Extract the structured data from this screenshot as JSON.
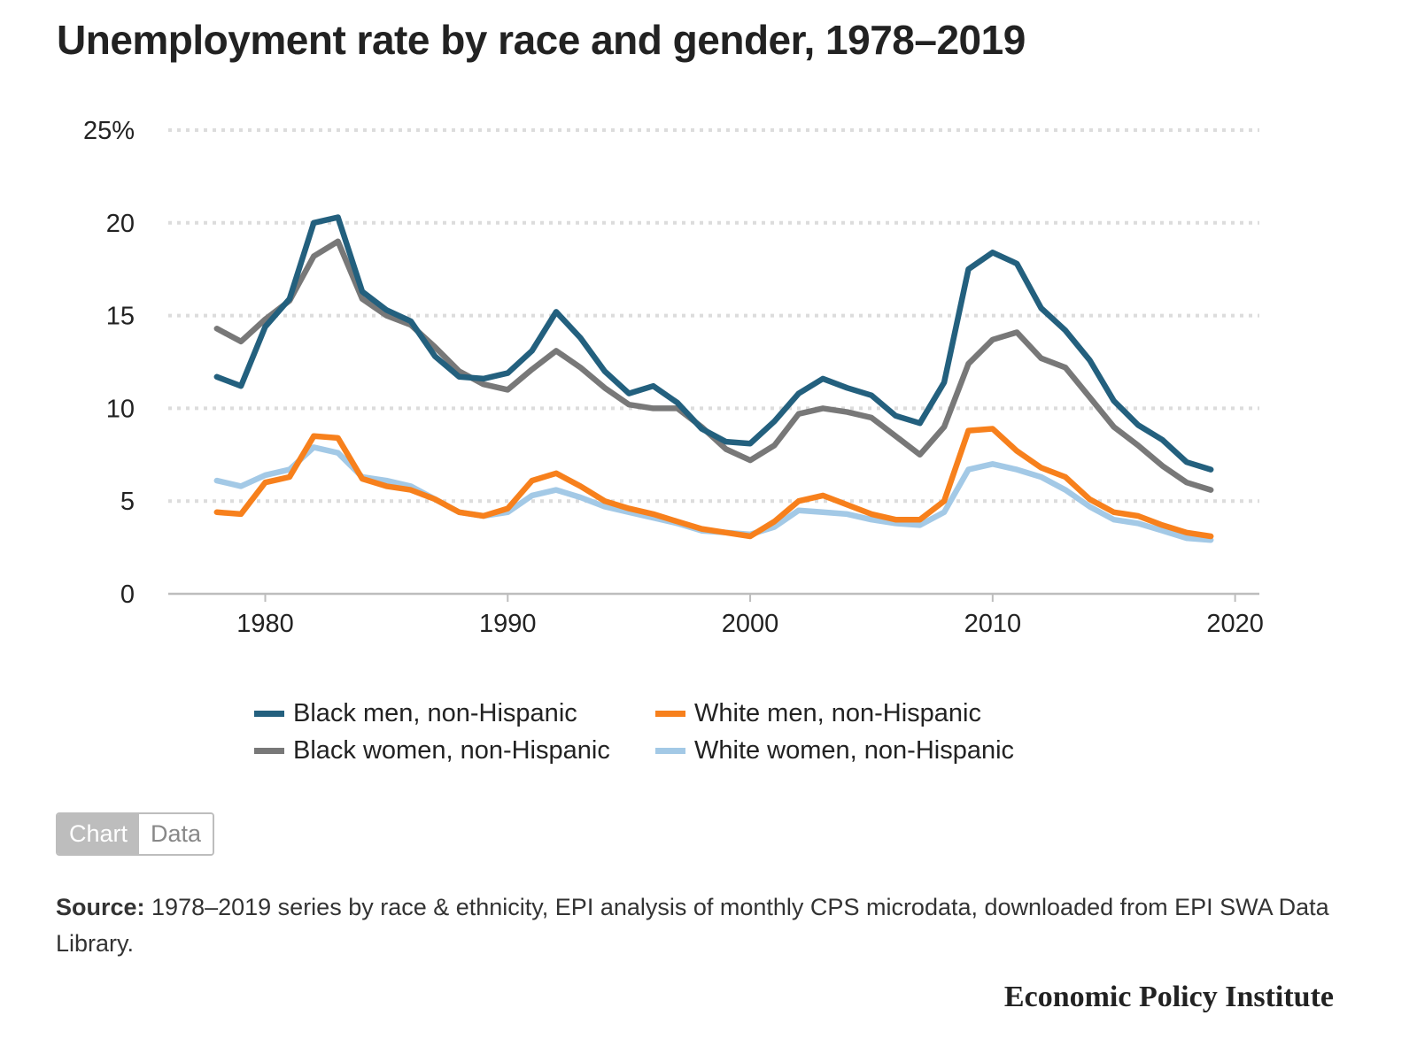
{
  "title": "Unemployment rate by race and gender, 1978–2019",
  "chart_data": {
    "type": "line",
    "title": "Unemployment rate by race and gender, 1978–2019",
    "xlabel": "",
    "ylabel": "",
    "xlim": [
      1976,
      2021
    ],
    "ylim": [
      0,
      25
    ],
    "x_ticks": [
      1980,
      1990,
      2000,
      2010,
      2020
    ],
    "y_ticks": [
      {
        "value": 0,
        "label": "0"
      },
      {
        "value": 5,
        "label": "5"
      },
      {
        "value": 10,
        "label": "10"
      },
      {
        "value": 15,
        "label": "15"
      },
      {
        "value": 20,
        "label": "20"
      },
      {
        "value": 25,
        "label": "25%"
      }
    ],
    "grid": true,
    "legend_position": "bottom",
    "x": [
      1978,
      1979,
      1980,
      1981,
      1982,
      1983,
      1984,
      1985,
      1986,
      1987,
      1988,
      1989,
      1990,
      1991,
      1992,
      1993,
      1994,
      1995,
      1996,
      1997,
      1998,
      1999,
      2000,
      2001,
      2002,
      2003,
      2004,
      2005,
      2006,
      2007,
      2008,
      2009,
      2010,
      2011,
      2012,
      2013,
      2014,
      2015,
      2016,
      2017,
      2018,
      2019
    ],
    "series": [
      {
        "name": "Black men, non-Hispanic",
        "color": "#23607e",
        "values": [
          11.7,
          11.2,
          14.4,
          15.9,
          20.0,
          20.3,
          16.3,
          15.3,
          14.7,
          12.8,
          11.7,
          11.6,
          11.9,
          13.1,
          15.2,
          13.8,
          12.0,
          10.8,
          11.2,
          10.3,
          8.9,
          8.2,
          8.1,
          9.3,
          10.8,
          11.6,
          11.1,
          10.7,
          9.6,
          9.2,
          11.4,
          17.5,
          18.4,
          17.8,
          15.4,
          14.2,
          12.6,
          10.4,
          9.1,
          8.3,
          7.1,
          6.7
        ]
      },
      {
        "name": "Black women, non-Hispanic",
        "color": "#787878",
        "values": [
          14.3,
          13.6,
          14.8,
          15.8,
          18.2,
          19.0,
          15.9,
          15.0,
          14.5,
          13.3,
          12.0,
          11.3,
          11.0,
          12.1,
          13.1,
          12.2,
          11.1,
          10.2,
          10.0,
          10.0,
          9.0,
          7.8,
          7.2,
          8.0,
          9.7,
          10.0,
          9.8,
          9.5,
          8.5,
          7.5,
          9.0,
          12.4,
          13.7,
          14.1,
          12.7,
          12.2,
          10.6,
          9.0,
          8.0,
          6.9,
          6.0,
          5.6
        ]
      },
      {
        "name": "White men, non-Hispanic",
        "color": "#f7801c",
        "values": [
          4.4,
          4.3,
          6.0,
          6.3,
          8.5,
          8.4,
          6.2,
          5.8,
          5.6,
          5.1,
          4.4,
          4.2,
          4.6,
          6.1,
          6.5,
          5.8,
          5.0,
          4.6,
          4.3,
          3.9,
          3.5,
          3.3,
          3.1,
          3.9,
          5.0,
          5.3,
          4.8,
          4.3,
          4.0,
          4.0,
          5.0,
          8.8,
          8.9,
          7.7,
          6.8,
          6.3,
          5.1,
          4.4,
          4.2,
          3.7,
          3.3,
          3.1
        ]
      },
      {
        "name": "White women, non-Hispanic",
        "color": "#a3c9e6",
        "values": [
          6.1,
          5.8,
          6.4,
          6.7,
          7.9,
          7.6,
          6.3,
          6.1,
          5.8,
          5.1,
          4.4,
          4.2,
          4.4,
          5.3,
          5.6,
          5.2,
          4.7,
          4.4,
          4.1,
          3.8,
          3.4,
          3.3,
          3.2,
          3.6,
          4.5,
          4.4,
          4.3,
          4.0,
          3.8,
          3.7,
          4.4,
          6.7,
          7.0,
          6.7,
          6.3,
          5.6,
          4.7,
          4.0,
          3.8,
          3.4,
          3.0,
          2.9
        ]
      }
    ]
  },
  "toggle": {
    "chart_label": "Chart",
    "data_label": "Data"
  },
  "source": {
    "label": "Source:",
    "text": " 1978–2019 series by race & ethnicity, EPI analysis of monthly CPS microdata, downloaded from EPI SWA Data Library."
  },
  "brand": "Economic Policy Institute"
}
